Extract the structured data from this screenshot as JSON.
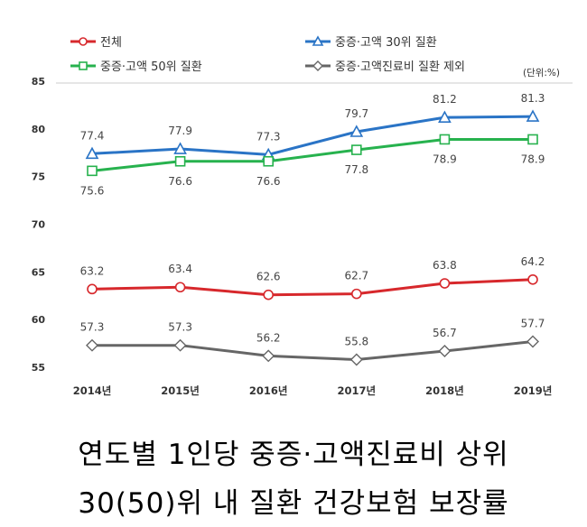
{
  "chart_data": {
    "type": "line",
    "title_lines": [
      "연도별 1인당 중증·고액진료비 상위",
      "30(50)위 내 질환 건강보험 보장률"
    ],
    "unit_label": "(단위:%)",
    "categories": [
      "2014년",
      "2015년",
      "2016년",
      "2017년",
      "2018년",
      "2019년"
    ],
    "ylim": [
      55,
      85
    ],
    "yticks": [
      "55",
      "60",
      "65",
      "70",
      "75",
      "80",
      "85"
    ],
    "grid": false,
    "legend_position": "top",
    "series": [
      {
        "name": "전체",
        "color": "#d7282c",
        "marker": "circle",
        "label_pos": "above",
        "values": [
          63.2,
          63.4,
          62.6,
          62.7,
          63.8,
          64.2
        ],
        "labels": [
          "63.2",
          "63.4",
          "62.6",
          "62.7",
          "63.8",
          "64.2"
        ]
      },
      {
        "name": "중증·고액 30위 질환",
        "color": "#2a74c6",
        "marker": "triangle",
        "label_pos": "above",
        "values": [
          77.4,
          77.9,
          77.3,
          79.7,
          81.2,
          81.3
        ],
        "labels": [
          "77.4",
          "77.9",
          "77.3",
          "79.7",
          "81.2",
          "81.3"
        ]
      },
      {
        "name": "중증·고액 50위 질환",
        "color": "#27b24e",
        "marker": "square",
        "label_pos": "below",
        "values": [
          75.6,
          76.6,
          76.6,
          77.8,
          78.9,
          78.9
        ],
        "labels": [
          "75.6",
          "76.6",
          "76.6",
          "77.8",
          "78.9",
          "78.9"
        ]
      },
      {
        "name": "중증·고액진료비 질환 제외",
        "color": "#666666",
        "marker": "diamond",
        "label_pos": "above",
        "values": [
          57.3,
          57.3,
          56.2,
          55.8,
          56.7,
          57.7
        ],
        "labels": [
          "57.3",
          "57.3",
          "56.2",
          "55.8",
          "56.7",
          "57.7"
        ]
      }
    ]
  }
}
